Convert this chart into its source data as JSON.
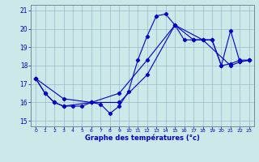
{
  "xlabel": "Graphe des températures (°c)",
  "background_color": "#cce8e8",
  "line_color": "#0000cc",
  "grid_color": "#99bbcc",
  "xlim_min": -0.5,
  "xlim_max": 23.5,
  "ylim_min": 14.7,
  "ylim_max": 21.3,
  "yticks": [
    15,
    16,
    17,
    18,
    19,
    20,
    21
  ],
  "xticks": [
    0,
    1,
    2,
    3,
    4,
    5,
    6,
    7,
    8,
    9,
    10,
    11,
    12,
    13,
    14,
    15,
    16,
    17,
    18,
    19,
    20,
    21,
    22,
    23
  ],
  "series": [
    {
      "x": [
        0,
        1,
        2,
        3,
        4,
        5,
        6,
        7,
        8,
        9,
        10,
        11,
        12,
        13,
        14,
        15,
        16,
        17,
        18,
        19,
        20,
        21,
        22,
        23
      ],
      "y": [
        17.3,
        16.5,
        16.0,
        15.8,
        15.8,
        15.8,
        16.0,
        15.9,
        15.4,
        15.8,
        16.6,
        18.3,
        19.6,
        20.7,
        20.8,
        20.2,
        19.4,
        19.4,
        19.4,
        19.4,
        18.0,
        18.1,
        18.3,
        18.3
      ]
    },
    {
      "x": [
        0,
        1,
        2,
        3,
        6,
        9,
        12,
        15,
        18,
        21,
        22,
        23
      ],
      "y": [
        17.3,
        16.5,
        16.0,
        15.8,
        16.0,
        16.5,
        18.3,
        20.2,
        19.4,
        18.0,
        18.2,
        18.3
      ]
    },
    {
      "x": [
        0,
        3,
        6,
        9,
        12,
        15,
        17,
        19,
        20,
        21,
        22,
        23
      ],
      "y": [
        17.3,
        16.2,
        16.0,
        16.0,
        17.5,
        20.2,
        19.4,
        19.4,
        18.0,
        19.9,
        18.2,
        18.3
      ]
    }
  ]
}
